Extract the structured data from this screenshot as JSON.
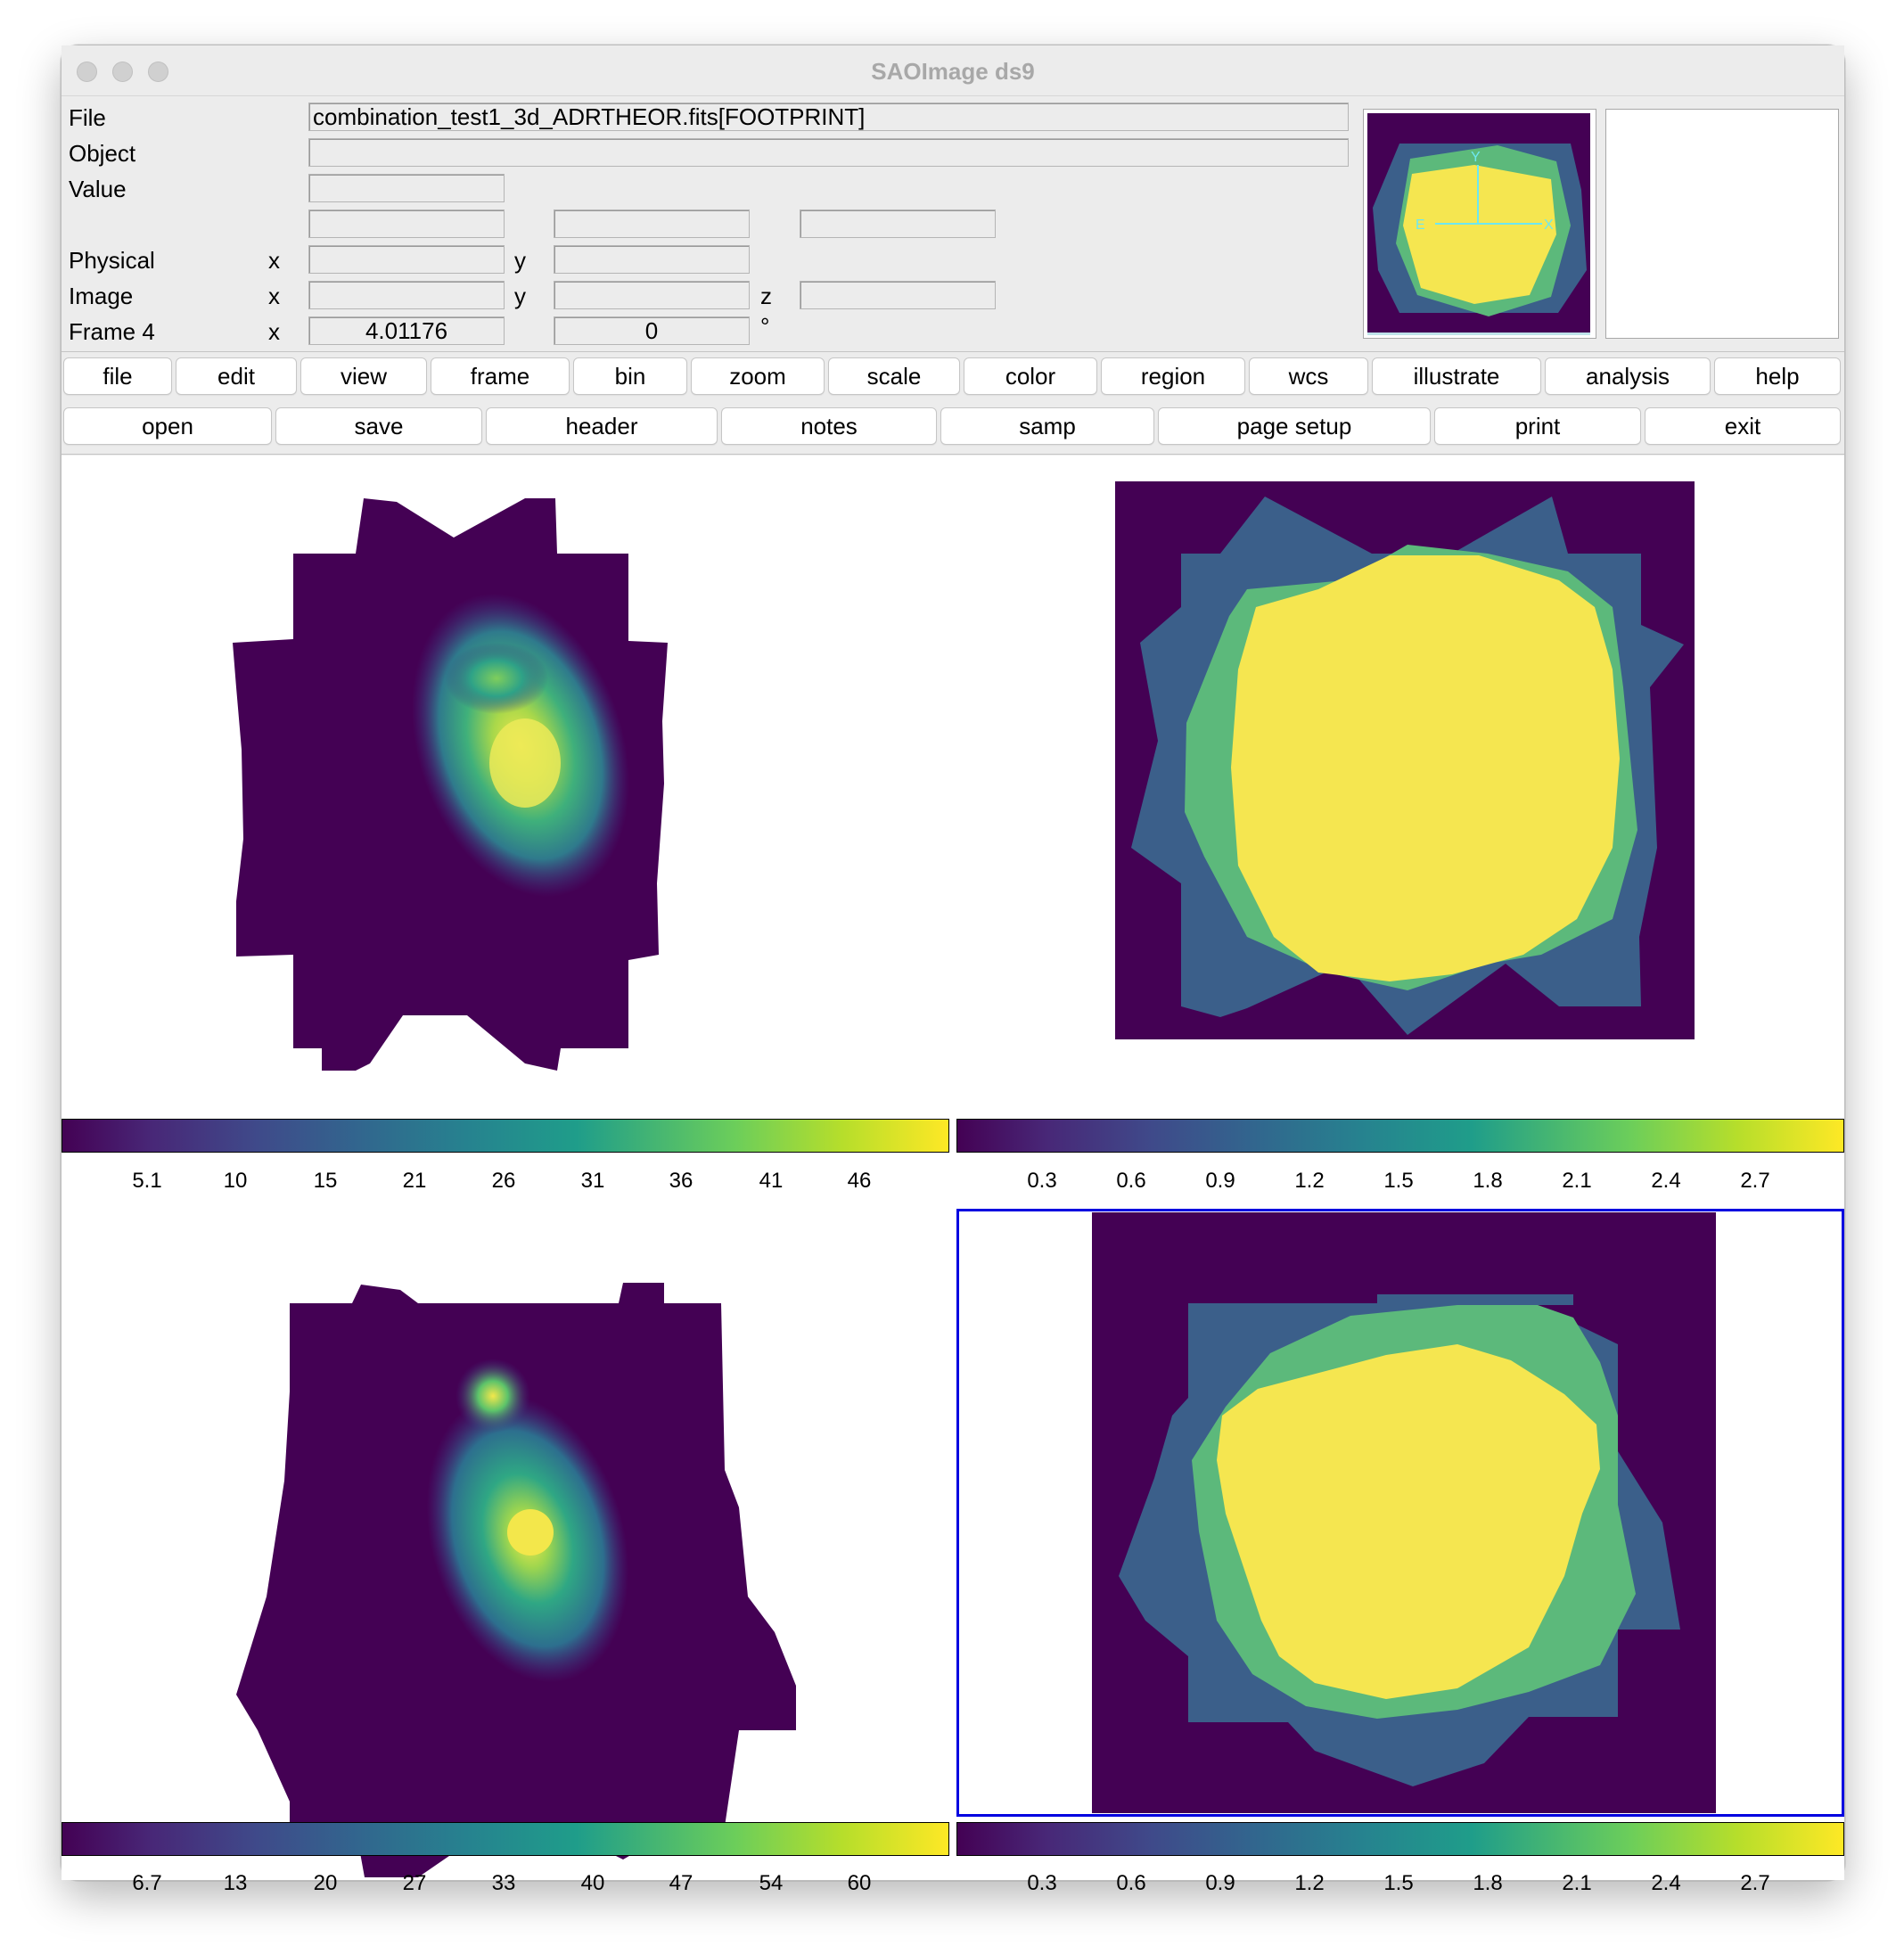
{
  "window": {
    "title": "SAOImage ds9"
  },
  "info": {
    "file_label": "File",
    "file_value": "combination_test1_3d_ADRTHEOR.fits[FOOTPRINT]",
    "object_label": "Object",
    "object_value": "",
    "value_label": "Value",
    "physical_label": "Physical",
    "image_label": "Image",
    "frame_label": "Frame 4",
    "x_label": "x",
    "y_label": "y",
    "z_label": "z",
    "frame_x_value": "4.01176",
    "frame_y_value": "0",
    "degree_symbol": "°"
  },
  "panner": {
    "north_label": "Y",
    "east_label": "E",
    "x_label": "X"
  },
  "menubar": [
    "file",
    "edit",
    "view",
    "frame",
    "bin",
    "zoom",
    "scale",
    "color",
    "region",
    "wcs",
    "illustrate",
    "analysis",
    "help"
  ],
  "buttonbar": [
    "open",
    "save",
    "header",
    "notes",
    "samp",
    "page setup",
    "print",
    "exit"
  ],
  "colorbars": {
    "top_left": [
      "5.1",
      "10",
      "15",
      "21",
      "26",
      "31",
      "36",
      "41",
      "46"
    ],
    "top_right": [
      "0.3",
      "0.6",
      "0.9",
      "1.2",
      "1.5",
      "1.8",
      "2.1",
      "2.4",
      "2.7"
    ],
    "bottom_left": [
      "6.7",
      "13",
      "20",
      "27",
      "33",
      "40",
      "47",
      "54",
      "60"
    ],
    "bottom_right": [
      "0.3",
      "0.6",
      "0.9",
      "1.2",
      "1.5",
      "1.8",
      "2.1",
      "2.4",
      "2.7"
    ]
  },
  "colors": {
    "viridis_dark": "#440154",
    "viridis_blue": "#3b5f8a",
    "viridis_green": "#5cb97b",
    "viridis_yellow": "#f5e650",
    "selection": "#0000e0"
  },
  "frames": [
    {
      "name": "frame-1",
      "content": "galaxy image"
    },
    {
      "name": "frame-2",
      "content": "footprint map"
    },
    {
      "name": "frame-3",
      "content": "galaxy image"
    },
    {
      "name": "frame-4",
      "content": "footprint map",
      "selected": true
    }
  ]
}
